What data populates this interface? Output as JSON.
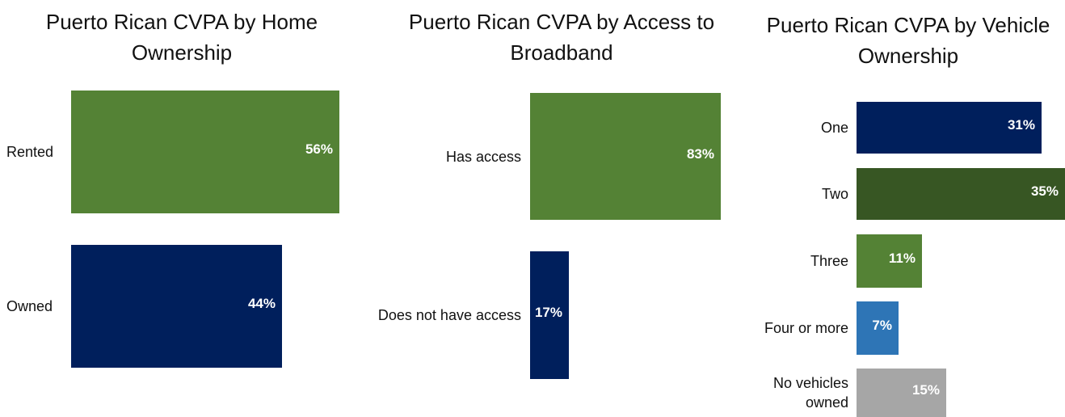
{
  "colors": {
    "green": "#548235",
    "navy": "#001f5c",
    "dark_green": "#375623",
    "blue": "#2e75b6",
    "gray": "#a6a6a6"
  },
  "chart_data": [
    {
      "type": "bar",
      "orientation": "horizontal",
      "title": "Puerto Rican CVPA by Home Ownership",
      "categories": [
        "Rented",
        "Owned"
      ],
      "values": [
        56,
        44
      ],
      "value_labels": [
        "56%",
        "44%"
      ],
      "bar_colors": [
        "#548235",
        "#001f5c"
      ],
      "xlim": [
        0,
        56
      ]
    },
    {
      "type": "bar",
      "orientation": "horizontal",
      "title": "Puerto Rican CVPA by Access to Broadband",
      "categories": [
        "Has access",
        "Does not have access"
      ],
      "values": [
        83,
        17
      ],
      "value_labels": [
        "83%",
        "17%"
      ],
      "bar_colors": [
        "#548235",
        "#001f5c"
      ],
      "xlim": [
        0,
        83
      ]
    },
    {
      "type": "bar",
      "orientation": "horizontal",
      "title": "Puerto Rican CVPA by Vehicle Ownership",
      "categories": [
        "One",
        "Two",
        "Three",
        "Four or more",
        "No vehicles owned"
      ],
      "values": [
        31,
        35,
        11,
        7,
        15
      ],
      "value_labels": [
        "31%",
        "35%",
        "11%",
        "7%",
        "15%"
      ],
      "bar_colors": [
        "#001f5c",
        "#375623",
        "#548235",
        "#2e75b6",
        "#a6a6a6"
      ],
      "xlim": [
        0,
        35
      ]
    }
  ]
}
